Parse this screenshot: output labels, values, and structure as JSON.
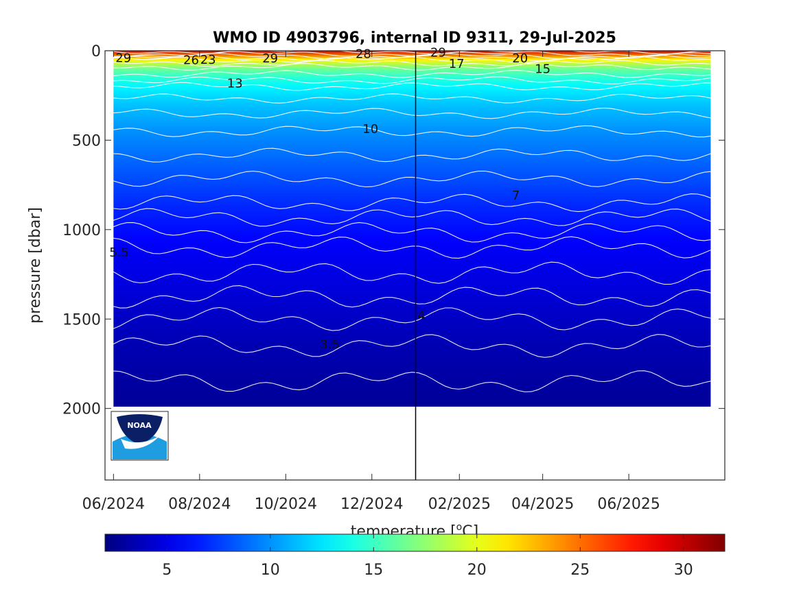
{
  "chart_data": {
    "type": "heatmap",
    "title": "WMO ID 4903796, internal ID 9311, 29-Jul-2025",
    "ylabel": "pressure [dbar]",
    "colorbar_label": "temperature [",
    "colorbar_label_sup": "o",
    "colorbar_label_unit": "C]",
    "ylim": [
      2400,
      0
    ],
    "xlim": [
      "2024-05-26",
      "2025-08-08"
    ],
    "clim": [
      2,
      32
    ],
    "y_ticks": [
      {
        "value": 0,
        "label": "0"
      },
      {
        "value": 500,
        "label": "500"
      },
      {
        "value": 1000,
        "label": "1000"
      },
      {
        "value": 1500,
        "label": "1500"
      },
      {
        "value": 2000,
        "label": "2000"
      }
    ],
    "x_ticks": [
      {
        "value": "2024-06-01",
        "label": "06/2024"
      },
      {
        "value": "2024-08-01",
        "label": "08/2024"
      },
      {
        "value": "2024-10-01",
        "label": "10/2024"
      },
      {
        "value": "2024-12-01",
        "label": "12/2024"
      },
      {
        "value": "2025-02-01",
        "label": "02/2025"
      },
      {
        "value": "2025-04-01",
        "label": "04/2025"
      },
      {
        "value": "2025-06-01",
        "label": "06/2025"
      }
    ],
    "colorbar_ticks": [
      {
        "value": 5,
        "label": "5"
      },
      {
        "value": 10,
        "label": "10"
      },
      {
        "value": 15,
        "label": "15"
      },
      {
        "value": 20,
        "label": "20"
      },
      {
        "value": 25,
        "label": "25"
      },
      {
        "value": 30,
        "label": "30"
      }
    ],
    "vertical_marker": "2025-01-01",
    "data_start": "2024-06-01",
    "data_end": "2025-07-29",
    "max_pressure": 1990,
    "temperature_profile": [
      {
        "p": 0,
        "t": 29.5
      },
      {
        "p": 25,
        "t": 26
      },
      {
        "p": 50,
        "t": 21
      },
      {
        "p": 90,
        "t": 17
      },
      {
        "p": 130,
        "t": 15
      },
      {
        "p": 200,
        "t": 13
      },
      {
        "p": 300,
        "t": 11.5
      },
      {
        "p": 450,
        "t": 10
      },
      {
        "p": 650,
        "t": 8.5
      },
      {
        "p": 850,
        "t": 7
      },
      {
        "p": 1100,
        "t": 5.5
      },
      {
        "p": 1300,
        "t": 4.8
      },
      {
        "p": 1500,
        "t": 4
      },
      {
        "p": 1650,
        "t": 3.5
      },
      {
        "p": 1850,
        "t": 3
      },
      {
        "p": 2000,
        "t": 2.7
      }
    ],
    "contour_labels": [
      {
        "text": "29",
        "date": "2024-06-08",
        "p": 40
      },
      {
        "text": "26",
        "date": "2024-07-26",
        "p": 52
      },
      {
        "text": "23",
        "date": "2024-08-07",
        "p": 50
      },
      {
        "text": "29",
        "date": "2024-09-20",
        "p": 42
      },
      {
        "text": "28",
        "date": "2024-11-25",
        "p": 18
      },
      {
        "text": "29",
        "date": "2025-01-17",
        "p": 10
      },
      {
        "text": "17",
        "date": "2025-01-30",
        "p": 72
      },
      {
        "text": "20",
        "date": "2025-03-16",
        "p": 42
      },
      {
        "text": "15",
        "date": "2025-04-01",
        "p": 102
      },
      {
        "text": "13",
        "date": "2024-08-26",
        "p": 182
      },
      {
        "text": "10",
        "date": "2024-11-30",
        "p": 438
      },
      {
        "text": "7",
        "date": "2025-03-13",
        "p": 808
      },
      {
        "text": "5.5",
        "date": "2024-06-05",
        "p": 1128
      },
      {
        "text": "4",
        "date": "2025-01-05",
        "p": 1482
      },
      {
        "text": "3.5",
        "date": "2024-11-01",
        "p": 1640
      }
    ]
  },
  "logo": {
    "text": "NOAA"
  }
}
